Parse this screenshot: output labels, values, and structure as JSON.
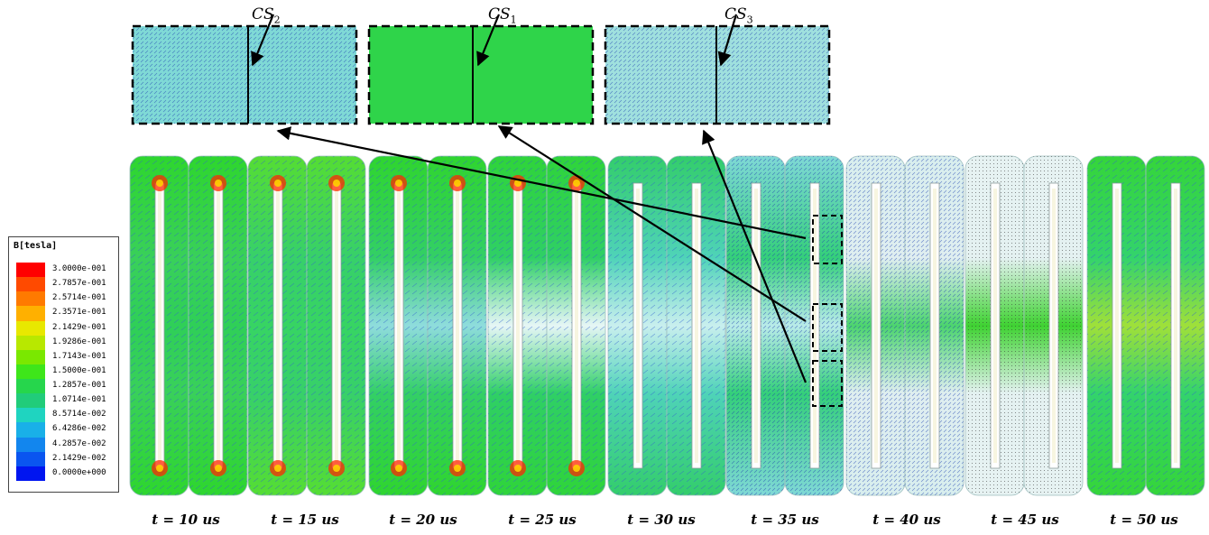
{
  "legend": {
    "title": "B[tesla]",
    "labels": [
      "3.0000e-001",
      "2.7857e-001",
      "2.5714e-001",
      "2.3571e-001",
      "2.1429e-001",
      "1.9286e-001",
      "1.7143e-001",
      "1.5000e-001",
      "1.2857e-001",
      "1.0714e-001",
      "8.5714e-002",
      "6.4286e-002",
      "4.2857e-002",
      "2.1429e-002",
      "0.0000e+000"
    ],
    "colors": [
      "#ff0000",
      "#ff4a00",
      "#ff7a00",
      "#ffb000",
      "#e8e800",
      "#b8e800",
      "#7ae800",
      "#3ee61a",
      "#26d64c",
      "#21cc7a",
      "#1fd4c0",
      "#19b0e8",
      "#1286ee",
      "#0a55f0",
      "#0015f0"
    ]
  },
  "cross_sections": [
    {
      "base": "CS",
      "sub": "2"
    },
    {
      "base": "CS",
      "sub": "1"
    },
    {
      "base": "CS",
      "sub": "3"
    }
  ],
  "time_labels": [
    "t = 10 us",
    "t = 15 us",
    "t = 20 us",
    "t = 25 us",
    "t = 30 us",
    "t = 35 us",
    "t = 40 us",
    "t = 45 us",
    "t = 50 us"
  ]
}
